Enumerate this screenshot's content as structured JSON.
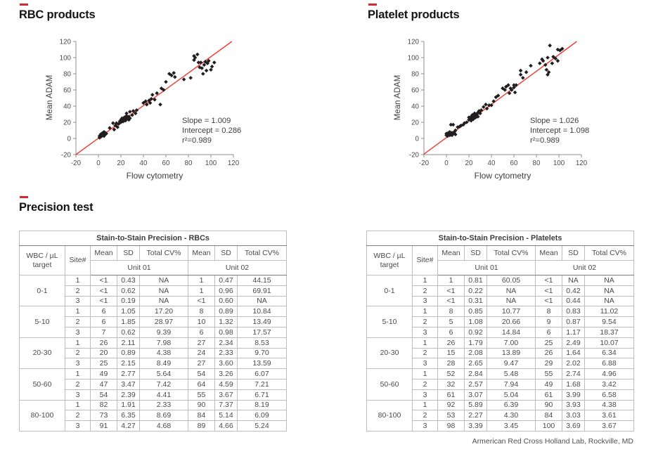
{
  "colors": {
    "accent_dash": "#d7282f",
    "regression_line": "#ee3b33",
    "marker": "#221e1f",
    "heading_text": "#141414",
    "body_text": "#4a4a4a",
    "axis": "#8c8c8c",
    "border_light": "#bdbdbd",
    "border_dark": "#7d7d7d"
  },
  "sections": {
    "rbc": {
      "heading": "RBC products"
    },
    "platelet": {
      "heading": "Platelet products"
    },
    "precision": {
      "heading": "Precision test",
      "footer": "Armerican Red Cross Holland Lab, Rockville, MD"
    }
  },
  "chart_data": [
    {
      "type": "scatter",
      "title": "RBC products",
      "xlabel": "Flow cytometry",
      "ylabel": "Mean ADAM",
      "xlim": [
        -20,
        120
      ],
      "ylim": [
        -20,
        120
      ],
      "ticks": [
        -20,
        0,
        20,
        40,
        60,
        80,
        100,
        120
      ],
      "grid": false,
      "regression": {
        "slope": 1.009,
        "intercept": 0.286,
        "r2": 0.989
      },
      "annotation": [
        "Slope = 1.009",
        "Intercept = 0.286",
        "r²=0.989"
      ],
      "points": [
        [
          1,
          1
        ],
        [
          1,
          3
        ],
        [
          2,
          2
        ],
        [
          2,
          5
        ],
        [
          3,
          3
        ],
        [
          3,
          6
        ],
        [
          4,
          4
        ],
        [
          4,
          7
        ],
        [
          5,
          3
        ],
        [
          5,
          6
        ],
        [
          5,
          8
        ],
        [
          6,
          5
        ],
        [
          6,
          7
        ],
        [
          7,
          6
        ],
        [
          10,
          13
        ],
        [
          13,
          19
        ],
        [
          14,
          11
        ],
        [
          15,
          16
        ],
        [
          16,
          19
        ],
        [
          17,
          14
        ],
        [
          18,
          18
        ],
        [
          19,
          21
        ],
        [
          20,
          20
        ],
        [
          20,
          23
        ],
        [
          21,
          25
        ],
        [
          21,
          22
        ],
        [
          22,
          21
        ],
        [
          22,
          24
        ],
        [
          23,
          23
        ],
        [
          23,
          26
        ],
        [
          24,
          22
        ],
        [
          24,
          25
        ],
        [
          25,
          24
        ],
        [
          25,
          28
        ],
        [
          25,
          31
        ],
        [
          26,
          26
        ],
        [
          27,
          23
        ],
        [
          27,
          27
        ],
        [
          28,
          25
        ],
        [
          28,
          33
        ],
        [
          30,
          29
        ],
        [
          31,
          34
        ],
        [
          33,
          31
        ],
        [
          34,
          35
        ],
        [
          40,
          44
        ],
        [
          42,
          46
        ],
        [
          43,
          42
        ],
        [
          45,
          47
        ],
        [
          46,
          44
        ],
        [
          47,
          49
        ],
        [
          48,
          54
        ],
        [
          50,
          48
        ],
        [
          52,
          56
        ],
        [
          55,
          42
        ],
        [
          56,
          62
        ],
        [
          58,
          60
        ],
        [
          60,
          70
        ],
        [
          63,
          80
        ],
        [
          65,
          78
        ],
        [
          67,
          81
        ],
        [
          68,
          76
        ],
        [
          76,
          73
        ],
        [
          82,
          75
        ],
        [
          85,
          97
        ],
        [
          85,
          102
        ],
        [
          86,
          100
        ],
        [
          88,
          104
        ],
        [
          89,
          94
        ],
        [
          90,
          88
        ],
        [
          91,
          94
        ],
        [
          92,
          87
        ],
        [
          93,
          80
        ],
        [
          94,
          91
        ],
        [
          95,
          95
        ],
        [
          96,
          84
        ],
        [
          97,
          93
        ],
        [
          98,
          96
        ],
        [
          100,
          85
        ],
        [
          101,
          89
        ],
        [
          103,
          94
        ]
      ]
    },
    {
      "type": "scatter",
      "title": "Platelet products",
      "xlabel": "Flow cytometry",
      "ylabel": "Mean ADAM",
      "xlim": [
        -20,
        120
      ],
      "ylim": [
        -20,
        120
      ],
      "ticks": [
        -20,
        0,
        20,
        40,
        60,
        80,
        100,
        120
      ],
      "grid": false,
      "regression": {
        "slope": 1.026,
        "intercept": 1.098,
        "r2": 0.989
      },
      "annotation": [
        "Slope = 1.026",
        "Intercept = 1.098",
        "r²=0.989"
      ],
      "points": [
        [
          0,
          4
        ],
        [
          0,
          6
        ],
        [
          1,
          3
        ],
        [
          1,
          6
        ],
        [
          2,
          5
        ],
        [
          2,
          7
        ],
        [
          3,
          4
        ],
        [
          3,
          8
        ],
        [
          4,
          5
        ],
        [
          4,
          17
        ],
        [
          5,
          4
        ],
        [
          5,
          7
        ],
        [
          6,
          6
        ],
        [
          6,
          17
        ],
        [
          7,
          8
        ],
        [
          8,
          5
        ],
        [
          8,
          10
        ],
        [
          10,
          14
        ],
        [
          12,
          15
        ],
        [
          13,
          16
        ],
        [
          15,
          17
        ],
        [
          16,
          19
        ],
        [
          18,
          20
        ],
        [
          20,
          23
        ],
        [
          20,
          26
        ],
        [
          21,
          24
        ],
        [
          22,
          22
        ],
        [
          22,
          27
        ],
        [
          23,
          25
        ],
        [
          23,
          29
        ],
        [
          24,
          24
        ],
        [
          24,
          26
        ],
        [
          25,
          28
        ],
        [
          25,
          31
        ],
        [
          26,
          26
        ],
        [
          26,
          30
        ],
        [
          27,
          29
        ],
        [
          28,
          27
        ],
        [
          28,
          32
        ],
        [
          29,
          34
        ],
        [
          30,
          31
        ],
        [
          31,
          35
        ],
        [
          33,
          39
        ],
        [
          35,
          42
        ],
        [
          36,
          37
        ],
        [
          38,
          41
        ],
        [
          40,
          41
        ],
        [
          42,
          46
        ],
        [
          44,
          51
        ],
        [
          46,
          53
        ],
        [
          50,
          62
        ],
        [
          52,
          60
        ],
        [
          53,
          64
        ],
        [
          55,
          66
        ],
        [
          56,
          56
        ],
        [
          57,
          62
        ],
        [
          58,
          60
        ],
        [
          60,
          63
        ],
        [
          60,
          66
        ],
        [
          61,
          57
        ],
        [
          62,
          66
        ],
        [
          66,
          79
        ],
        [
          66,
          84
        ],
        [
          68,
          75
        ],
        [
          71,
          82
        ],
        [
          75,
          90
        ],
        [
          83,
          93
        ],
        [
          85,
          98
        ],
        [
          86,
          96
        ],
        [
          88,
          91
        ],
        [
          89,
          85
        ],
        [
          90,
          100
        ],
        [
          90,
          79
        ],
        [
          91,
          82
        ],
        [
          92,
          115
        ],
        [
          94,
          93
        ],
        [
          95,
          101
        ],
        [
          97,
          99
        ],
        [
          99,
          96
        ],
        [
          99,
          110
        ],
        [
          101,
          109
        ],
        [
          103,
          111
        ]
      ]
    }
  ],
  "tables": [
    {
      "title": "Stain-to-Stain Precision - RBCs",
      "col_target": "WBC / µL target",
      "col_site": "Site#",
      "measures": [
        "Mean",
        "SD",
        "Total CV%",
        "Mean",
        "SD",
        "Total CV%"
      ],
      "units": [
        "Unit 01",
        "Unit 02"
      ],
      "groups": [
        {
          "target": "0-1",
          "rows": [
            [
              "1",
              "<1",
              "0.43",
              "NA",
              "1",
              "0.47",
              "44.15"
            ],
            [
              "2",
              "<1",
              "0.62",
              "NA",
              "1",
              "0.96",
              "69.91"
            ],
            [
              "3",
              "<1",
              "0.19",
              "NA",
              "<1",
              "0.60",
              "NA"
            ]
          ]
        },
        {
          "target": "5-10",
          "rows": [
            [
              "1",
              "6",
              "1.05",
              "17.20",
              "8",
              "0.89",
              "10.84"
            ],
            [
              "2",
              "6",
              "1.85",
              "28.97",
              "10",
              "1.32",
              "13.49"
            ],
            [
              "3",
              "7",
              "0.62",
              "9.39",
              "6",
              "0.98",
              "17.57"
            ]
          ]
        },
        {
          "target": "20-30",
          "rows": [
            [
              "1",
              "26",
              "2.11",
              "7.98",
              "27",
              "2.34",
              "8.53"
            ],
            [
              "2",
              "20",
              "0.89",
              "4.38",
              "24",
              "2.33",
              "9.70"
            ],
            [
              "3",
              "25",
              "2.15",
              "8.49",
              "27",
              "3.60",
              "13.59"
            ]
          ]
        },
        {
          "target": "50-60",
          "rows": [
            [
              "1",
              "49",
              "2.77",
              "5.64",
              "54",
              "3.26",
              "6.07"
            ],
            [
              "2",
              "47",
              "3.47",
              "7.42",
              "64",
              "4.59",
              "7.21"
            ],
            [
              "3",
              "54",
              "2.39",
              "4.41",
              "55",
              "3.67",
              "6.71"
            ]
          ]
        },
        {
          "target": "80-100",
          "rows": [
            [
              "1",
              "82",
              "1.91",
              "2.33",
              "90",
              "7.37",
              "8.19"
            ],
            [
              "2",
              "73",
              "6.35",
              "8.69",
              "84",
              "5.14",
              "6.09"
            ],
            [
              "3",
              "91",
              "4.27",
              "4.68",
              "89",
              "4.66",
              "5.24"
            ]
          ]
        }
      ]
    },
    {
      "title": "Stain-to-Stain Precision - Platelets",
      "col_target": "WBC / µL target",
      "col_site": "Site#",
      "measures": [
        "Mean",
        "SD",
        "Total CV%",
        "Mean",
        "SD",
        "Total CV%"
      ],
      "units": [
        "Unit 01",
        "Unit 02"
      ],
      "groups": [
        {
          "target": "0-1",
          "rows": [
            [
              "1",
              "1",
              "0.81",
              "60.05",
              "<1",
              "NA",
              "NA"
            ],
            [
              "2",
              "<1",
              "0.22",
              "NA",
              "<1",
              "0.42",
              "NA"
            ],
            [
              "3",
              "<1",
              "0.31",
              "NA",
              "<1",
              "0.44",
              "NA"
            ]
          ]
        },
        {
          "target": "5-10",
          "rows": [
            [
              "1",
              "8",
              "0.85",
              "10.77",
              "8",
              "0.83",
              "11.02"
            ],
            [
              "2",
              "5",
              "1.08",
              "20.66",
              "9",
              "0.87",
              "9.54"
            ],
            [
              "3",
              "6",
              "0.92",
              "14.84",
              "6",
              "1.17",
              "18.37"
            ]
          ]
        },
        {
          "target": "20-30",
          "rows": [
            [
              "1",
              "26",
              "1.79",
              "7.00",
              "25",
              "2.49",
              "10.07"
            ],
            [
              "2",
              "15",
              "2.08",
              "13.89",
              "26",
              "1.64",
              "6.34"
            ],
            [
              "3",
              "28",
              "2.65",
              "9.47",
              "29",
              "2.02",
              "6.88"
            ]
          ]
        },
        {
          "target": "50-60",
          "rows": [
            [
              "1",
              "52",
              "2.84",
              "5.48",
              "55",
              "2.74",
              "4.96"
            ],
            [
              "2",
              "32",
              "2.57",
              "7.94",
              "49",
              "1.68",
              "3.42"
            ],
            [
              "3",
              "61",
              "3.07",
              "5.04",
              "61",
              "3.99",
              "6.58"
            ]
          ]
        },
        {
          "target": "80-100",
          "rows": [
            [
              "1",
              "92",
              "5.89",
              "6.39",
              "90",
              "3.93",
              "4.38"
            ],
            [
              "2",
              "53",
              "2.27",
              "4.30",
              "84",
              "3.03",
              "3.61"
            ],
            [
              "3",
              "98",
              "3.39",
              "3.45",
              "100",
              "3.69",
              "3.67"
            ]
          ]
        }
      ]
    }
  ]
}
